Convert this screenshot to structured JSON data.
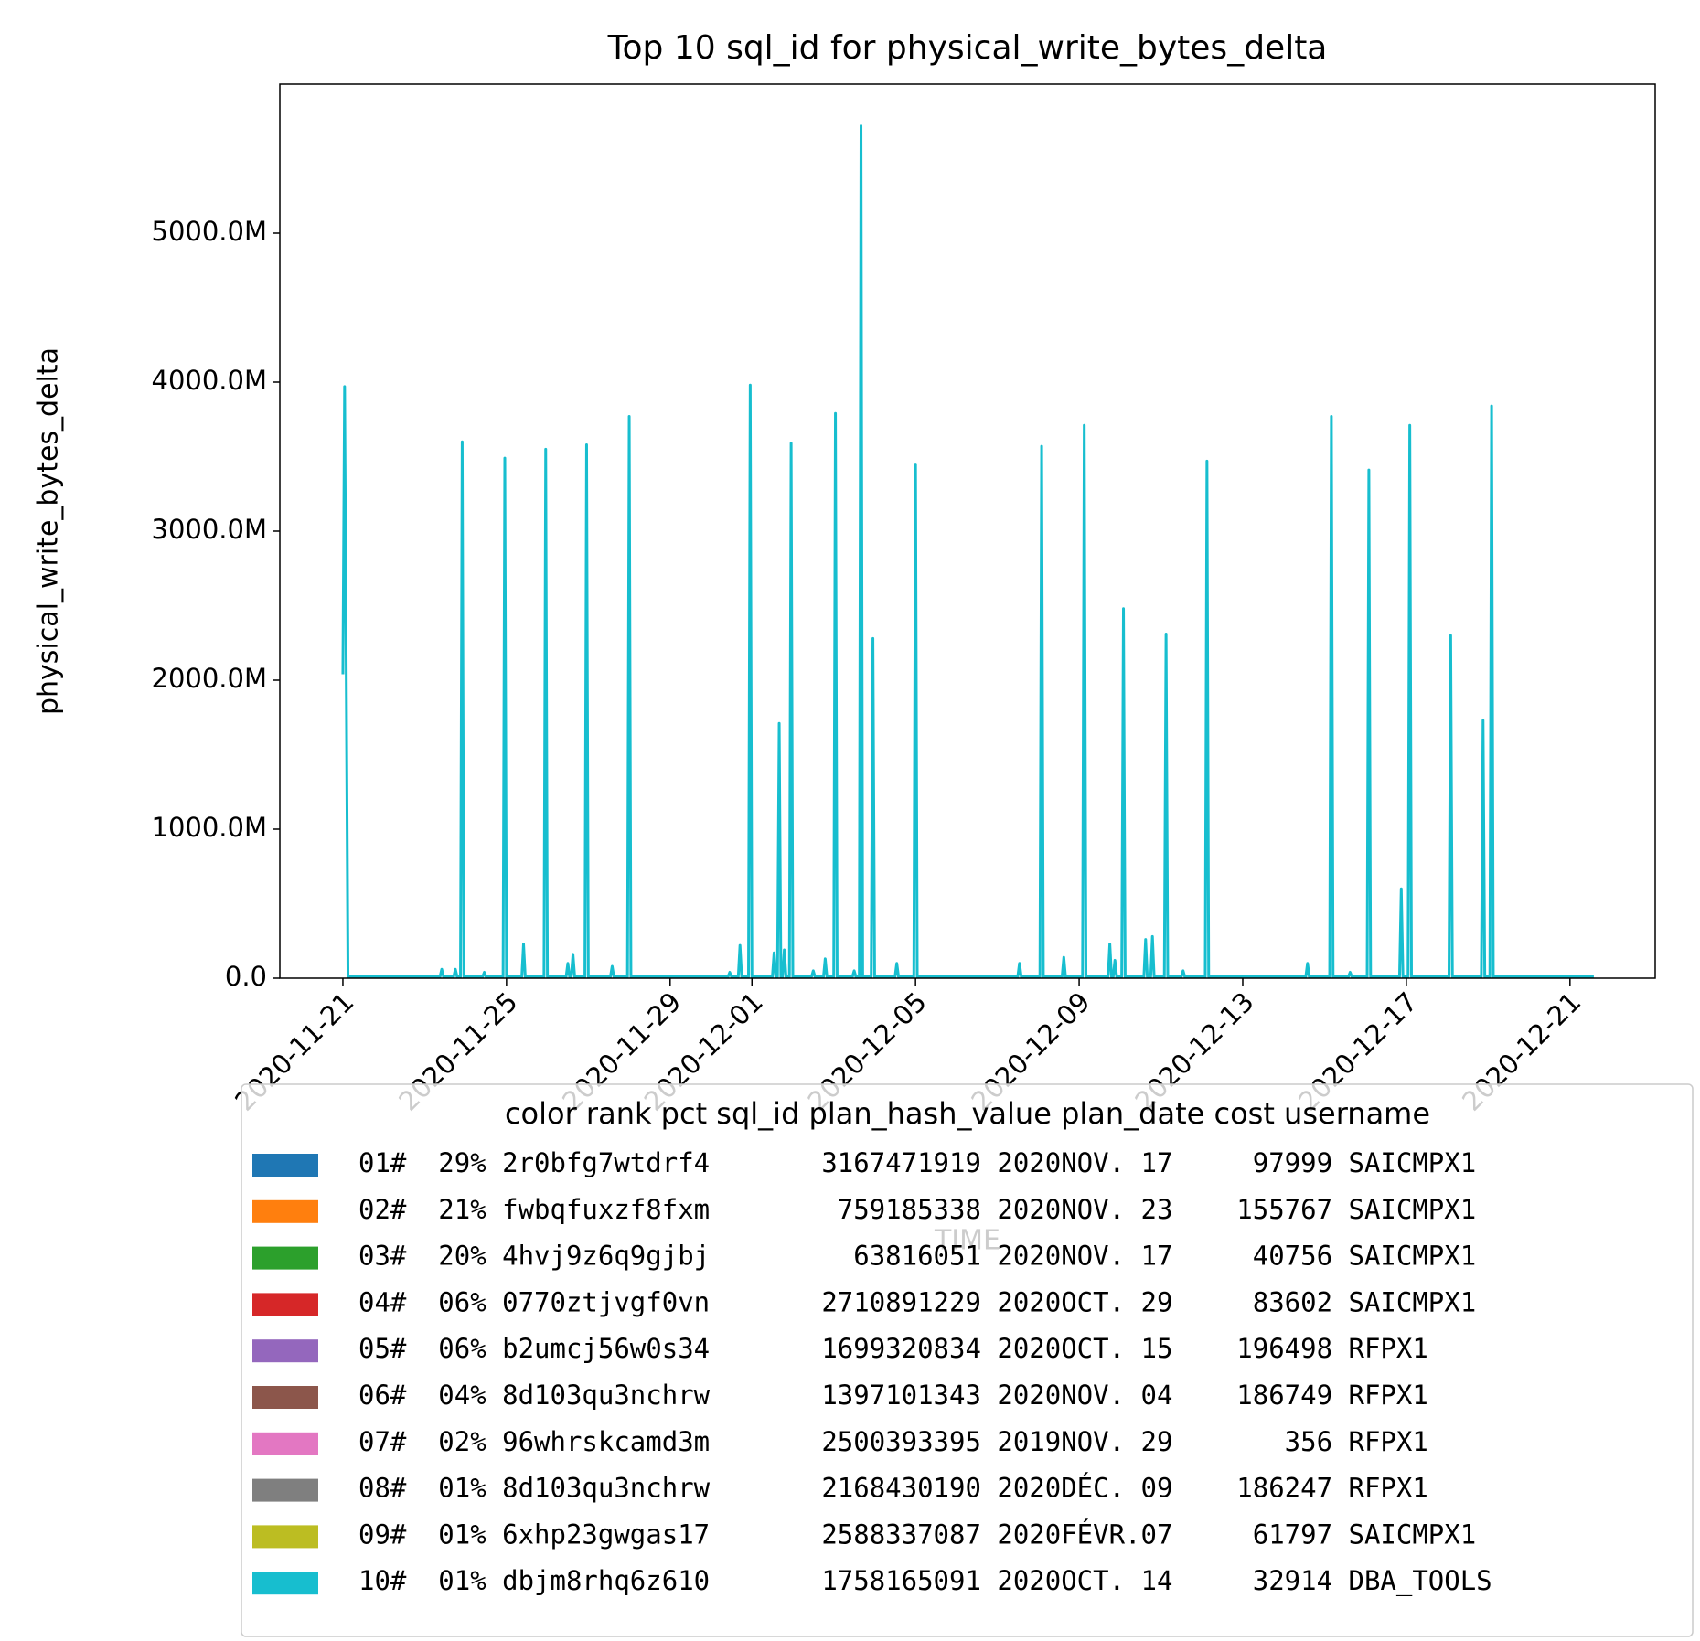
{
  "chart_data": {
    "type": "line",
    "title": "Top 10 sql_id for physical_write_bytes_delta",
    "xlabel": "TIME",
    "ylabel": "physical_write_bytes_delta",
    "ylim": [
      0,
      6000
    ],
    "yticks": [
      {
        "value": 0,
        "label": "0.0"
      },
      {
        "value": 1000,
        "label": "1000.0M"
      },
      {
        "value": 2000,
        "label": "2000.0M"
      },
      {
        "value": 3000,
        "label": "3000.0M"
      },
      {
        "value": 4000,
        "label": "4000.0M"
      },
      {
        "value": 5000,
        "label": "5000.0M"
      }
    ],
    "xlim": [
      "2020-11-19 11:00",
      "2020-12-23 02:00"
    ],
    "xticks": [
      "2020-11-21",
      "2020-11-25",
      "2020-11-29",
      "2020-12-01",
      "2020-12-05",
      "2020-12-09",
      "2020-12-13",
      "2020-12-17",
      "2020-12-21"
    ],
    "legend_title": "color rank pct sql_id plan_hash_value plan_date cost username",
    "legend": "lower center",
    "series": [
      {
        "name": "01#  29% 2r0bfg7wtdrf4       3167471919 2020NOV. 17     97999 SAICMPX1",
        "color": "#1f77b4"
      },
      {
        "name": "02#  21% fwbqfuxzf8fxm        759185338 2020NOV. 23    155767 SAICMPX1",
        "color": "#ff7f0e"
      },
      {
        "name": "03#  20% 4hvj9z6q9gjbj         63816051 2020NOV. 17     40756 SAICMPX1",
        "color": "#2ca02c"
      },
      {
        "name": "04#  06% 0770ztjvgf0vn       2710891229 2020OCT. 29     83602 SAICMPX1",
        "color": "#d62728"
      },
      {
        "name": "05#  06% b2umcj56w0s34       1699320834 2020OCT. 15    196498 RFPX1",
        "color": "#9467bd"
      },
      {
        "name": "06#  04% 8d103qu3nchrw       1397101343 2020NOV. 04    186749 RFPX1",
        "color": "#8c564b"
      },
      {
        "name": "07#  02% 96whrskcamd3m       2500393395 2019NOV. 29       356 RFPX1",
        "color": "#e377c2"
      },
      {
        "name": "08#  01% 8d103qu3nchrw       2168430190 2020DÉC. 09    186247 RFPX1",
        "color": "#7f7f7f"
      },
      {
        "name": "09#  01% 6xhp23gwgas17       2588337087 2020FÉVR.07     61797 SAICMPX1",
        "color": "#bcbd22"
      },
      {
        "name": "10#  01% dbjm8rhq6z610       1758165091 2020OCT. 14     32914 DBA_TOOLS",
        "color": "#17becf",
        "x": [
          "2020-11-21 00:00",
          "2020-11-21 01:00",
          "2020-11-21 03:00",
          "2020-11-23 09:00",
          "2020-11-23 10:00",
          "2020-11-23 11:00",
          "2020-11-23 17:00",
          "2020-11-23 18:00",
          "2020-11-23 19:00",
          "2020-11-23 21:00",
          "2020-11-23 22:00",
          "2020-11-23 23:00",
          "2020-11-24 10:00",
          "2020-11-24 11:00",
          "2020-11-24 12:00",
          "2020-11-24 22:00",
          "2020-11-24 23:00",
          "2020-11-25 00:00",
          "2020-11-25 09:00",
          "2020-11-25 10:00",
          "2020-11-25 11:00",
          "2020-11-25 22:00",
          "2020-11-25 23:00",
          "2020-11-26 00:00",
          "2020-11-26 11:00",
          "2020-11-26 12:00",
          "2020-11-26 13:00",
          "2020-11-26 14:00",
          "2020-11-26 15:00",
          "2020-11-26 16:00",
          "2020-11-26 22:00",
          "2020-11-26 23:00",
          "2020-11-27 00:00",
          "2020-11-27 13:00",
          "2020-11-27 14:00",
          "2020-11-27 15:00",
          "2020-11-27 23:00",
          "2020-11-28 00:00",
          "2020-11-28 01:00",
          "2020-11-30 10:00",
          "2020-11-30 11:00",
          "2020-11-30 12:00",
          "2020-11-30 16:00",
          "2020-11-30 17:00",
          "2020-11-30 18:00",
          "2020-11-30 22:00",
          "2020-11-30 23:00",
          "2020-12-01 00:00",
          "2020-12-01 12:00",
          "2020-12-01 13:00",
          "2020-12-01 14:00",
          "2020-12-01 15:00",
          "2020-12-01 16:00",
          "2020-12-01 17:00",
          "2020-12-01 18:00",
          "2020-12-01 19:00",
          "2020-12-01 20:00",
          "2020-12-01 22:00",
          "2020-12-01 23:00",
          "2020-12-02 00:00",
          "2020-12-02 11:00",
          "2020-12-02 12:00",
          "2020-12-02 13:00",
          "2020-12-02 18:00",
          "2020-12-02 19:00",
          "2020-12-02 20:00",
          "2020-12-03 00:00",
          "2020-12-03 01:00",
          "2020-12-03 02:00",
          "2020-12-03 11:00",
          "2020-12-03 12:00",
          "2020-12-03 13:00",
          "2020-12-03 15:00",
          "2020-12-03 16:00",
          "2020-12-03 17:00",
          "2020-12-03 22:00",
          "2020-12-03 23:00",
          "2020-12-04 00:00",
          "2020-12-04 12:00",
          "2020-12-04 13:00",
          "2020-12-04 14:00",
          "2020-12-04 23:00",
          "2020-12-05 00:00",
          "2020-12-05 01:00",
          "2020-12-07 12:00",
          "2020-12-07 13:00",
          "2020-12-07 14:00",
          "2020-12-08 01:00",
          "2020-12-08 02:00",
          "2020-12-08 03:00",
          "2020-12-08 14:00",
          "2020-12-08 15:00",
          "2020-12-08 16:00",
          "2020-12-09 02:00",
          "2020-12-09 03:00",
          "2020-12-09 04:00",
          "2020-12-09 17:00",
          "2020-12-09 18:00",
          "2020-12-09 19:00",
          "2020-12-09 20:00",
          "2020-12-09 21:00",
          "2020-12-09 22:00",
          "2020-12-10 01:00",
          "2020-12-10 02:00",
          "2020-12-10 03:00",
          "2020-12-10 14:00",
          "2020-12-10 15:00",
          "2020-12-10 16:00",
          "2020-12-10 18:00",
          "2020-12-10 19:00",
          "2020-12-10 20:00",
          "2020-12-11 02:00",
          "2020-12-11 03:00",
          "2020-12-11 04:00",
          "2020-12-11 12:00",
          "2020-12-11 13:00",
          "2020-12-11 14:00",
          "2020-12-12 02:00",
          "2020-12-12 03:00",
          "2020-12-12 04:00",
          "2020-12-14 13:00",
          "2020-12-14 14:00",
          "2020-12-14 15:00",
          "2020-12-15 03:00",
          "2020-12-15 04:00",
          "2020-12-15 05:00",
          "2020-12-15 14:00",
          "2020-12-15 15:00",
          "2020-12-15 16:00",
          "2020-12-16 01:00",
          "2020-12-16 02:00",
          "2020-12-16 03:00",
          "2020-12-16 20:00",
          "2020-12-16 21:00",
          "2020-12-16 22:00",
          "2020-12-17 01:00",
          "2020-12-17 02:00",
          "2020-12-17 03:00",
          "2020-12-18 01:00",
          "2020-12-18 02:00",
          "2020-12-18 03:00",
          "2020-12-18 20:00",
          "2020-12-18 21:00",
          "2020-12-18 22:00",
          "2020-12-19 01:00",
          "2020-12-19 02:00",
          "2020-12-19 03:00",
          "2020-12-21 14:00"
        ],
        "values": [
          2040,
          3970,
          10,
          10,
          60,
          10,
          10,
          60,
          10,
          10,
          3600,
          10,
          10,
          40,
          10,
          10,
          3490,
          10,
          10,
          230,
          10,
          10,
          3550,
          10,
          10,
          100,
          10,
          10,
          160,
          10,
          10,
          3580,
          10,
          10,
          80,
          10,
          10,
          3770,
          10,
          10,
          40,
          10,
          10,
          220,
          10,
          10,
          3980,
          10,
          10,
          170,
          10,
          10,
          1710,
          10,
          10,
          190,
          10,
          10,
          3590,
          10,
          10,
          50,
          10,
          10,
          130,
          10,
          10,
          3790,
          10,
          10,
          50,
          10,
          10,
          5720,
          10,
          10,
          2280,
          10,
          10,
          100,
          10,
          10,
          3450,
          10,
          10,
          100,
          10,
          10,
          3570,
          10,
          10,
          140,
          10,
          10,
          3710,
          10,
          10,
          230,
          10,
          10,
          120,
          10,
          10,
          2480,
          10,
          10,
          260,
          10,
          10,
          280,
          10,
          10,
          2310,
          10,
          10,
          50,
          10,
          10,
          3470,
          10,
          10,
          100,
          10,
          10,
          3770,
          10,
          10,
          40,
          10,
          10,
          3410,
          10,
          10,
          600,
          10,
          10,
          3710,
          10,
          10,
          2300,
          10,
          10,
          1730,
          10,
          10,
          3840,
          10,
          10
        ]
      }
    ]
  }
}
